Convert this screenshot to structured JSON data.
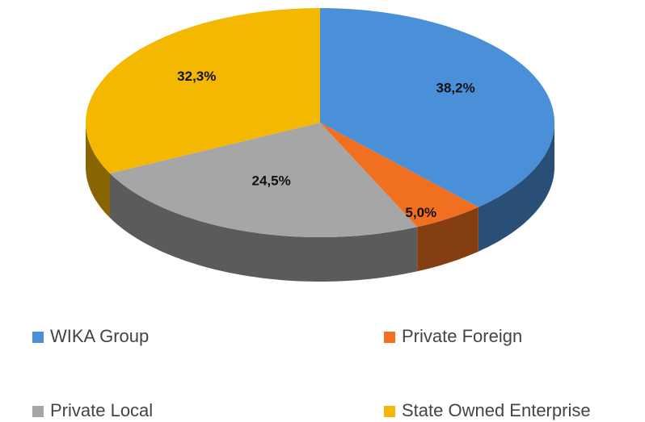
{
  "chart_data": {
    "type": "pie",
    "categories": [
      "WIKA Group",
      "Private Foreign",
      "Private Local",
      "State Owned Enterprise"
    ],
    "values": [
      38.2,
      5.0,
      24.5,
      32.3
    ],
    "value_labels": [
      "38,2%",
      "5,0%",
      "24,5%",
      "32,3%"
    ],
    "colors": [
      "#4a90d9",
      "#f07020",
      "#a6a6a6",
      "#f5b800"
    ],
    "legend": "bottom"
  }
}
